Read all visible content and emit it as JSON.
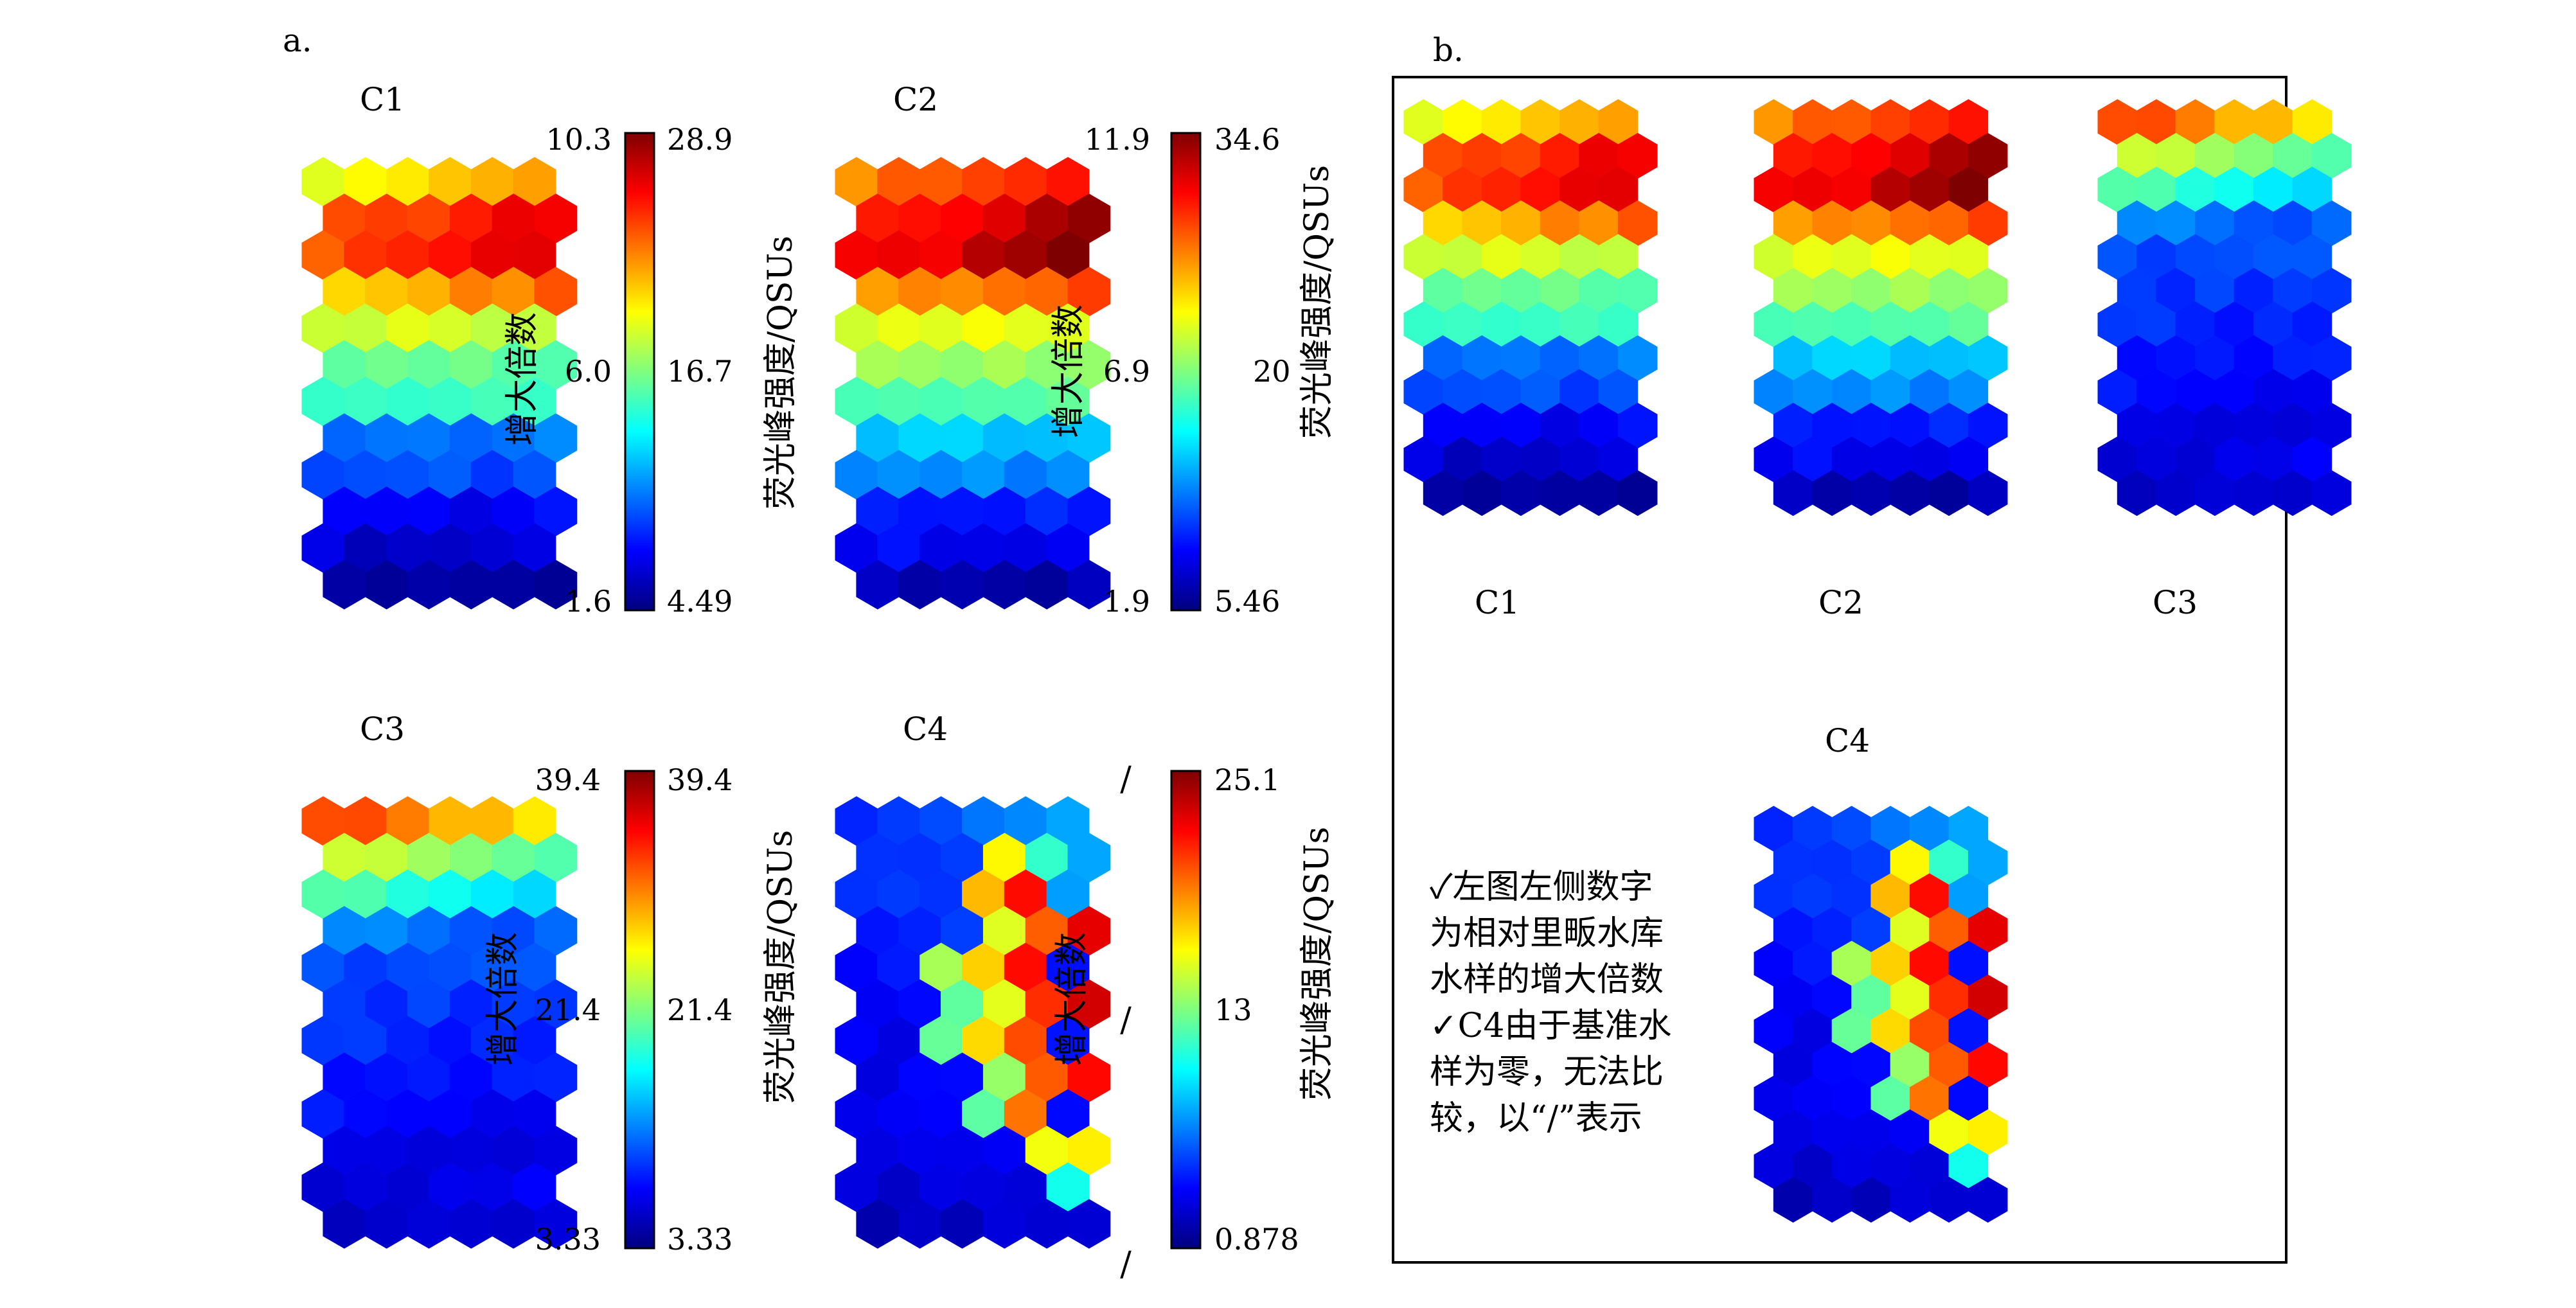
{
  "panels": {
    "a": "a.",
    "b": "b."
  },
  "colormap": [
    "#00007f",
    "#0000ff",
    "#007fff",
    "#00ffff",
    "#7fff7f",
    "#ffff00",
    "#ff7f00",
    "#ff0000",
    "#7f0000"
  ],
  "labels": {
    "left_axis": "增大倍数",
    "right_axis": "荧光峰强度/QSUs"
  },
  "chart_data": [
    {
      "type": "heatmap",
      "title": "C1",
      "cols": 6,
      "rows": 12,
      "left_ticks": [
        "10.3",
        "6.0",
        "1.6"
      ],
      "right_ticks": [
        "28.9",
        "16.7",
        "4.49"
      ],
      "profile": [
        0.62,
        0.68,
        0.78,
        0.8,
        0.7,
        0.66,
        0.58,
        0.52,
        0.47,
        0.42,
        0.34,
        0.24,
        0.2,
        0.16,
        0.12,
        0.08,
        0.05,
        0.02
      ],
      "hot": [],
      "tl": false
    },
    {
      "type": "heatmap",
      "title": "C2",
      "cols": 6,
      "rows": 12,
      "left_ticks": [
        "11.9",
        "6.9",
        "1.9"
      ],
      "right_ticks": [
        "34.6",
        "20",
        "5.46"
      ],
      "profile": [
        0.74,
        0.8,
        0.84,
        0.86,
        0.74,
        0.7,
        0.6,
        0.56,
        0.52,
        0.47,
        0.42,
        0.33,
        0.26,
        0.2,
        0.16,
        0.12,
        0.08,
        0.05
      ],
      "hot": [],
      "tl": false
    },
    {
      "type": "heatmap",
      "title": "C3",
      "cols": 6,
      "rows": 12,
      "left_ticks": [
        "39.4",
        "21.4",
        "3.33"
      ],
      "right_ticks": [
        "39.4",
        "21.4",
        "3.33"
      ],
      "profile": [
        0.64,
        0.58,
        0.46,
        0.36,
        0.24,
        0.21,
        0.2,
        0.18,
        0.17,
        0.16,
        0.15,
        0.14,
        0.13,
        0.12,
        0.11,
        0.1,
        0.09,
        0.07
      ],
      "hot": [],
      "tl": true
    },
    {
      "type": "heatmap",
      "title": "C4",
      "cols": 6,
      "rows": 12,
      "left_ticks": [
        "/",
        "/",
        "/"
      ],
      "right_ticks": [
        "25.1",
        "13",
        "0.878"
      ],
      "profile": [
        0.17,
        0.16,
        0.16,
        0.15,
        0.15,
        0.14,
        0.14,
        0.13,
        0.13,
        0.12,
        0.12,
        0.11,
        0.11,
        0.1,
        0.1,
        0.09,
        0.08,
        0.07
      ],
      "hot": [
        [
          1,
          3,
          0.62
        ],
        [
          1,
          4,
          0.42
        ],
        [
          2,
          3,
          0.7
        ],
        [
          2,
          4,
          0.88
        ],
        [
          3,
          3,
          0.6
        ],
        [
          3,
          4,
          0.78
        ],
        [
          3,
          5,
          0.9
        ],
        [
          4,
          2,
          0.52
        ],
        [
          4,
          3,
          0.66
        ],
        [
          4,
          4,
          0.86
        ],
        [
          5,
          2,
          0.48
        ],
        [
          5,
          3,
          0.58
        ],
        [
          5,
          4,
          0.84
        ],
        [
          5,
          5,
          0.9
        ],
        [
          6,
          2,
          0.46
        ],
        [
          6,
          3,
          0.68
        ],
        [
          6,
          4,
          0.82
        ],
        [
          7,
          3,
          0.52
        ],
        [
          7,
          4,
          0.78
        ],
        [
          7,
          5,
          0.86
        ],
        [
          8,
          3,
          0.48
        ],
        [
          8,
          4,
          0.74
        ],
        [
          9,
          4,
          0.6
        ],
        [
          9,
          5,
          0.66
        ],
        [
          10,
          5,
          0.4
        ]
      ],
      "tl": false
    }
  ],
  "notes": [
    "✓左图左侧数字",
    "为相对里畈水库",
    "水样的增大倍数",
    "✓C4由于基准水",
    "样为零，无法比",
    "较，以“/”表示"
  ]
}
